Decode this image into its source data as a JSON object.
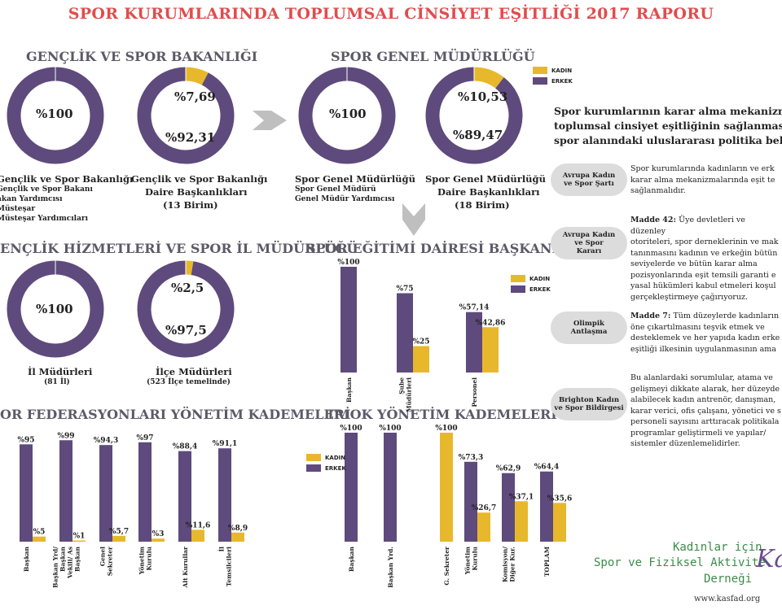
{
  "title": "SPOR KURUMLARINDA TOPLUMSAL CİNSİYET EŞİTLİĞİ 2017 RAPORU",
  "colors": {
    "kadin": "#e8b82c",
    "erkek": "#5e4a7c",
    "section": "#5c5a67",
    "title": "#e14c4c"
  },
  "legend": {
    "kadin": "KADIN",
    "erkek": "ERKEK"
  },
  "sections": {
    "gsb": "GENÇLİK VE SPOR BAKANLIĞI",
    "sgm": "SPOR GENEL MÜDÜRLÜĞÜ",
    "ilmud": "ENÇLİK HİZMETLERİ VE SPOR İL MÜDÜRLÜĞÜ",
    "sed": "SPOR EĞİTİMİ DAİRESİ BAŞKANLIĞI",
    "fed": "OR FEDERASYONLARI YÖNETİM KADEMELERİ",
    "tmok": "TMOK YÖNETİM KADEMELERİ"
  },
  "donuts": [
    {
      "kadin": 0,
      "erkek": 100,
      "kadin_label": "",
      "erkek_label": "%100",
      "caption": "Gençlik ve Spor Bakanlığı",
      "caption_line2": "",
      "sub": [
        "Gençlik ve Spor Bakanı",
        "akan Yardımcısı",
        "Müsteşar",
        "Müsteşar Yardımcıları"
      ]
    },
    {
      "kadin": 7.69,
      "erkek": 92.31,
      "kadin_label": "%7,69",
      "erkek_label": "%92,31",
      "caption": "Gençlik ve Spor Bakanlığı",
      "caption_line2": "Daire Başkanlıkları",
      "sub": [
        "(13 Birim)"
      ]
    },
    {
      "kadin": 0,
      "erkek": 100,
      "kadin_label": "",
      "erkek_label": "%100",
      "caption": "Spor Genel Müdürlüğü",
      "caption_line2": "",
      "sub": [
        "Spor Genel Müdürü",
        "Genel Müdür Yardımcısı"
      ]
    },
    {
      "kadin": 10.53,
      "erkek": 89.47,
      "kadin_label": "%10,53",
      "erkek_label": "%89,47",
      "caption": "Spor Genel Müdürlüğü",
      "caption_line2": "Daire Başkanlıkları",
      "sub": [
        "(18 Birim)"
      ]
    },
    {
      "kadin": 0,
      "erkek": 100,
      "kadin_label": "",
      "erkek_label": "%100",
      "caption": "İl Müdürleri",
      "caption_line2": "",
      "sub": [
        "(81 İl)"
      ]
    },
    {
      "kadin": 2.5,
      "erkek": 97.5,
      "kadin_label": "%2,5",
      "erkek_label": "%97,5",
      "caption": "İlçe Müdürleri",
      "caption_line2": "",
      "sub": [
        "(523 İlçe temelinde)"
      ]
    }
  ],
  "chart_data": [
    {
      "type": "bar",
      "title": "SPOR EĞİTİMİ DAİRESİ BAŞKANLIĞI",
      "categories": [
        "Başkan",
        "Şube Müdürleri",
        "Personel"
      ],
      "series": [
        {
          "name": "ERKEK",
          "values": [
            100,
            75,
            57.14
          ],
          "labels": [
            "%100",
            "%75",
            "%57,14"
          ]
        },
        {
          "name": "KADIN",
          "values": [
            0,
            25,
            42.86
          ],
          "labels": [
            "",
            "%25",
            "%42,86"
          ]
        }
      ],
      "ylim": [
        0,
        100
      ],
      "legend": "top-right"
    },
    {
      "type": "bar",
      "title": "OR FEDERASYONLARI YÖNETİM KADEMELERİ",
      "categories": [
        "Başkan",
        "Başkan Yrd/ Başkan Vekili/ As Başkan",
        "Genel Sekreter",
        "Yönetim Kurulu",
        "Alt Kurullar",
        "İl Temsilcileri"
      ],
      "series": [
        {
          "name": "ERKEK",
          "values": [
            95,
            99,
            94.3,
            97,
            88.4,
            91.1
          ],
          "labels": [
            "%95",
            "%99",
            "%94,3",
            "%97",
            "%88,4",
            "%91,1"
          ]
        },
        {
          "name": "KADIN",
          "values": [
            5,
            1,
            5.7,
            3,
            11.6,
            8.9
          ],
          "labels": [
            "%5",
            "%1",
            "%5,7",
            "%3",
            "%11,6",
            "%8,9"
          ]
        }
      ],
      "ylim": [
        0,
        100
      ]
    },
    {
      "type": "bar",
      "title": "TMOK YÖNETİM KADEMELERİ",
      "categories": [
        "Başkan",
        "Başkan Yrd.",
        "G. Sekreter",
        "Yönetim Kurulu",
        "Komisyon/ Diğer Kur.",
        "TOPLAM"
      ],
      "series": [
        {
          "name": "ERKEK",
          "values": [
            100,
            100,
            0,
            73.3,
            62.9,
            64.4
          ],
          "labels": [
            "%100",
            "%100",
            "",
            "%73,3",
            "%62,9",
            "%64,4"
          ]
        },
        {
          "name": "KADIN",
          "values": [
            0,
            0,
            100,
            26.7,
            37.1,
            35.6
          ],
          "labels": [
            "",
            "",
            "%100",
            "%26,7",
            "%37,1",
            "%35,6"
          ]
        }
      ],
      "ylim": [
        0,
        100
      ],
      "legend": "top-left"
    }
  ],
  "right_panel": {
    "title_lines": [
      "Spor kurumlarının karar alma mekanizmala",
      "toplumsal cinsiyet eşitliğinin sağlanmasına y",
      "spor alanındaki uluslararası politika belgele"
    ],
    "items": [
      {
        "pill": "Avrupa Kadın\nve Spor Şartı",
        "text": "Spor kurumlarında kadınların ve erk\nkarar alma mekanizmalarında eşit te\nsağlanmalıdır."
      },
      {
        "pill": "Avrupa Kadın\nve Spor\nKararı",
        "lead": "Madde 42:",
        "text": " Üye devletleri ve düzenley\notoriteleri, spor derneklerinin ve mak\ntanınmasını kadının ve erkeğin bütün\nseviyelerde ve bütün karar alma\npozisyonlarında eşit temsili garanti e\nyasal hükümleri kabul etmeleri koşul\ngerçekleştirmeye çağırıyoruz."
      },
      {
        "pill": "Olimpik\nAntlaşma",
        "lead": "Madde 7:",
        "text": " Tüm düzeylerde kadınların\nöne çıkartılmasını teşvik etmek ve\ndesteklemek ve her yapıda kadın erke\neşitliği ilkesinin uygulanmasının ama"
      },
      {
        "pill": "Brighton Kadın\nve Spor Bildirgesi",
        "text": "Bu alanlardaki sorumlular, atama ve\ngelişmeyi dikkate alarak, her düzeyde\nalabilecek kadın antrenör, danışman,\nkarar verici, ofis çalışanı, yönetici ve s\npersoneli sayısını arttıracak politikala\nprogramlar geliştirmeli ve yapılar/\nsistemler düzenlemelidirler."
      }
    ]
  },
  "logo": {
    "line1": "Kadınlar için",
    "line2": "Spor ve Fiziksel Aktivite",
    "line3": "Derneği",
    "mark": "Kas",
    "url": "www.kasfad.org"
  }
}
